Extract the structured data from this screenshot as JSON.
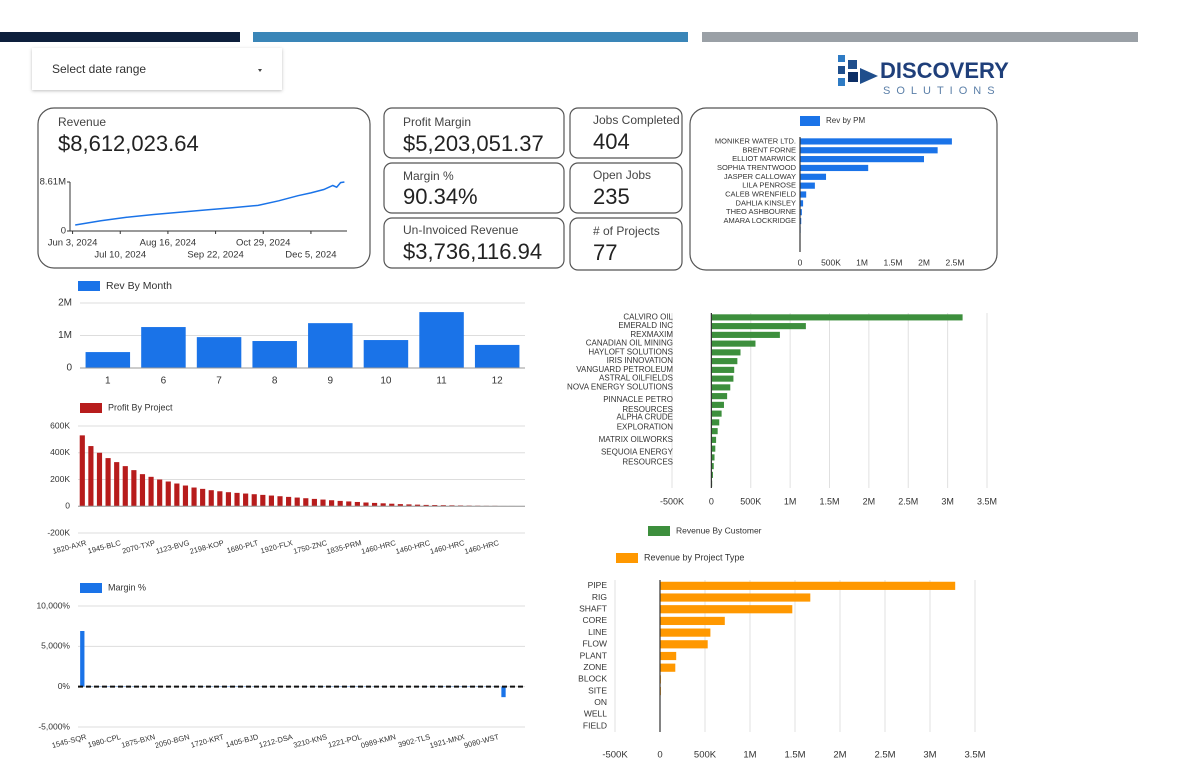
{
  "date_picker": {
    "label": "Select date range"
  },
  "logo": {
    "name": "DISCOVERY",
    "tagline": "SOLUTIONS"
  },
  "kpis": [
    {
      "label": "Profit Margin",
      "value": "$5,203,051.37"
    },
    {
      "label": "Margin %",
      "value": "90.34%"
    },
    {
      "label": "Un-Invoiced Revenue",
      "value": "$3,736,116.94"
    },
    {
      "label": "Jobs Completed",
      "value": "404"
    },
    {
      "label": "Open Jobs",
      "value": "235"
    },
    {
      "label": "# of Projects",
      "value": "77"
    }
  ],
  "chart_data": [
    {
      "type": "line",
      "title": "Revenue",
      "subtitle": "$8,612,023.64",
      "color": "#1a73e8",
      "x": [
        "2024-06-05",
        "2024-06-25",
        "2024-07-15",
        "2024-08-05",
        "2024-08-25",
        "2024-09-15",
        "2024-10-05",
        "2024-10-25",
        "2024-11-10",
        "2024-11-25",
        "2024-12-05",
        "2024-12-15",
        "2024-12-22",
        "2024-12-25",
        "2024-12-28",
        "2024-12-31"
      ],
      "values": [
        1050000,
        1800000,
        2400000,
        2900000,
        3300000,
        3700000,
        4100000,
        4500000,
        5300000,
        6200000,
        6700000,
        7300000,
        8000000,
        7700000,
        8500000,
        8610000
      ],
      "xlim": [
        "2024-06-01",
        "2025-01-02"
      ],
      "xticks": [
        {
          "value": "2024-06-03",
          "label": "Jun 3, 2024"
        },
        {
          "value": "2024-07-10",
          "label": "Jul 10, 2024"
        },
        {
          "value": "2024-08-16",
          "label": "Aug 16, 2024"
        },
        {
          "value": "2024-09-22",
          "label": "Sep 22, 2024"
        },
        {
          "value": "2024-10-29",
          "label": "Oct 29, 2024"
        },
        {
          "value": "2024-12-05",
          "label": "Dec 5, 2024"
        }
      ],
      "ylim": [
        0,
        8610000
      ],
      "yticks": [
        0,
        {
          "value": 8610000,
          "label": "8.61M"
        }
      ],
      "grid": false
    },
    {
      "type": "bar",
      "orientation": "horizontal",
      "legend": "top",
      "categories": [
        "MONIKER WATER LTD.",
        "BRENT FORNE",
        "ELLIOT MARWICK",
        "SOPHIA TRENTWOOD",
        "JASPER CALLOWAY",
        "LILA PENROSE",
        "CALEB WRENFIELD",
        "DAHLIA KINSLEY",
        "THEO ASHBOURNE",
        "AMARA LOCKRIDGE",
        null,
        null,
        null
      ],
      "series": [
        {
          "name": "Rev by PM",
          "color": "#1a73e8",
          "values": [
            2450000,
            2220000,
            2000000,
            1100000,
            420000,
            240000,
            100000,
            50000,
            30000,
            20000,
            10000,
            5000,
            2000
          ]
        }
      ],
      "xlim": [
        0,
        2800000
      ],
      "xticks": [
        0,
        {
          "value": 500000,
          "label": "500K"
        },
        {
          "value": 1000000,
          "label": "1M"
        },
        {
          "value": 1500000,
          "label": "1.5M"
        },
        {
          "value": 2000000,
          "label": "2M"
        },
        {
          "value": 2500000,
          "label": "2.5M"
        }
      ],
      "grid": false
    },
    {
      "type": "bar",
      "orientation": "vertical",
      "legend": "top-left",
      "categories": [
        "1",
        "6",
        "7",
        "8",
        "9",
        "10",
        "11",
        "12"
      ],
      "series": [
        {
          "name": "Rev By Month",
          "color": "#1a73e8",
          "values": [
            490000,
            1260000,
            950000,
            830000,
            1380000,
            860000,
            1720000,
            710000
          ]
        }
      ],
      "ylim": [
        0,
        2000000
      ],
      "yticks": [
        0,
        {
          "value": 1000000,
          "label": "1M"
        },
        {
          "value": 2000000,
          "label": "2M"
        }
      ],
      "grid": true
    },
    {
      "type": "bar",
      "orientation": "vertical",
      "legend": "top-left",
      "categories": [
        "1820-AXR",
        null,
        null,
        null,
        "1945-BLC",
        null,
        null,
        null,
        "2070-TXP",
        null,
        null,
        null,
        "1123-BVG",
        null,
        null,
        null,
        "2198-KOP",
        null,
        null,
        null,
        "1680-PLT",
        null,
        null,
        null,
        "1920-FLX",
        null,
        null,
        null,
        "1750-ZNC",
        null,
        null,
        null,
        "1835-PRM",
        null,
        null,
        null,
        "1460-HRC",
        null,
        null,
        null,
        "1460-HRC",
        null,
        null,
        null,
        "1460-HRC",
        null,
        null,
        null,
        "1460-HRC",
        null,
        null,
        null
      ],
      "series": [
        {
          "name": "Profit By Project",
          "color": "#b71c1c",
          "values": [
            530000,
            450000,
            400000,
            360000,
            330000,
            300000,
            270000,
            240000,
            220000,
            200000,
            185000,
            170000,
            155000,
            140000,
            130000,
            120000,
            112000,
            105000,
            100000,
            95000,
            90000,
            85000,
            80000,
            75000,
            70000,
            65000,
            60000,
            55000,
            50000,
            45000,
            40000,
            36000,
            32000,
            28000,
            25000,
            22000,
            19000,
            16000,
            14000,
            12000,
            10000,
            9000,
            8000,
            7000,
            6000,
            5000,
            4000,
            3000,
            3000,
            2000,
            2000,
            1000
          ]
        }
      ],
      "ylim": [
        -200000,
        600000
      ],
      "yticks": [
        {
          "value": -200000,
          "label": "-200K"
        },
        0,
        {
          "value": 200000,
          "label": "200K"
        },
        {
          "value": 400000,
          "label": "400K"
        },
        {
          "value": 600000,
          "label": "600K"
        }
      ],
      "grid": true
    },
    {
      "type": "bar",
      "orientation": "vertical",
      "legend": "top-left",
      "categories": [
        "1545-SQR",
        null,
        null,
        null,
        "1980-CPL",
        null,
        null,
        null,
        "1875-BXN",
        null,
        null,
        null,
        "2050-BGN",
        null,
        null,
        null,
        "1720-KRT",
        null,
        null,
        null,
        "1405-BJD",
        null,
        null,
        null,
        "1212-DSA",
        null,
        null,
        null,
        "3210-KNS",
        null,
        null,
        null,
        "1221-POL",
        null,
        null,
        null,
        "0989-KMN",
        null,
        null,
        null,
        "3902-TLS",
        null,
        null,
        null,
        "1921-MNX",
        null,
        null,
        null,
        "9080-WST",
        null,
        null,
        null
      ],
      "series": [
        {
          "name": "Margin %",
          "color": "#1a73e8",
          "values": [
            6900,
            40,
            35,
            30,
            30,
            28,
            25,
            25,
            22,
            20,
            20,
            20,
            18,
            18,
            16,
            15,
            15,
            14,
            13,
            12,
            12,
            11,
            10,
            10,
            10,
            9,
            9,
            8,
            8,
            8,
            7,
            7,
            6,
            6,
            6,
            5,
            5,
            5,
            4,
            4,
            4,
            3,
            3,
            3,
            2,
            2,
            2,
            2,
            1,
            -1300,
            1,
            1
          ]
        }
      ],
      "ylim": [
        -5000,
        10000
      ],
      "yticks": [
        {
          "value": -5000,
          "label": "-5,000%"
        },
        {
          "value": 0,
          "label": "0%"
        },
        {
          "value": 5000,
          "label": "5,000%"
        },
        {
          "value": 10000,
          "label": "10,000%"
        }
      ],
      "grid": true
    },
    {
      "type": "bar",
      "orientation": "horizontal",
      "legend": "bottom",
      "categories": [
        "CALVIRO OIL",
        "EMERALD INC",
        "REXMAXIM",
        "CANADIAN OIL MINING",
        "HAYLOFT SOLUTIONS",
        "IRIS INNOVATION",
        "VANGUARD PETROLEUM",
        "ASTRAL OILFIELDS",
        "NOVA ENERGY SOLUTIONS",
        null,
        "PINNACLE PETRO RESOURCES",
        null,
        "ALPHA CRUDE EXPLORATION",
        null,
        "MATRIX OILWORKS",
        null,
        "SEQUOIA ENERGY RESOURCES",
        null,
        null,
        null
      ],
      "series": [
        {
          "name": "Revenue By Customer",
          "color": "#3d8f3d",
          "values": [
            3190000,
            1200000,
            870000,
            560000,
            370000,
            330000,
            290000,
            280000,
            240000,
            200000,
            160000,
            130000,
            100000,
            80000,
            60000,
            50000,
            40000,
            30000,
            20000,
            10000
          ]
        }
      ],
      "xlim": [
        -500000,
        3500000
      ],
      "xticks": [
        {
          "value": -500000,
          "label": "-500K"
        },
        0,
        {
          "value": 500000,
          "label": "500K"
        },
        {
          "value": 1000000,
          "label": "1M"
        },
        {
          "value": 1500000,
          "label": "1.5M"
        },
        {
          "value": 2000000,
          "label": "2M"
        },
        {
          "value": 2500000,
          "label": "2.5M"
        },
        {
          "value": 3000000,
          "label": "3M"
        },
        {
          "value": 3500000,
          "label": "3.5M"
        }
      ],
      "grid": true
    },
    {
      "type": "bar",
      "orientation": "horizontal",
      "legend": "top",
      "categories": [
        "PIPE",
        "RIG",
        "SHAFT",
        "CORE",
        "LINE",
        "FLOW",
        "PLANT",
        "ZONE",
        "BLOCK",
        "SITE",
        "ON",
        "WELL",
        "FIELD"
      ],
      "series": [
        {
          "name": "Revenue by Project Type",
          "color": "#ff9800",
          "values": [
            3280000,
            1670000,
            1470000,
            720000,
            560000,
            530000,
            180000,
            170000,
            10000,
            10000,
            0,
            0,
            0
          ]
        }
      ],
      "xlim": [
        -500000,
        3500000
      ],
      "xticks": [
        {
          "value": -500000,
          "label": "-500K"
        },
        0,
        {
          "value": 500000,
          "label": "500K"
        },
        {
          "value": 1000000,
          "label": "1M"
        },
        {
          "value": 1500000,
          "label": "1.5M"
        },
        {
          "value": 2000000,
          "label": "2M"
        },
        {
          "value": 2500000,
          "label": "2.5M"
        },
        {
          "value": 3000000,
          "label": "3M"
        },
        {
          "value": 3500000,
          "label": "3.5M"
        }
      ],
      "grid": true
    }
  ]
}
